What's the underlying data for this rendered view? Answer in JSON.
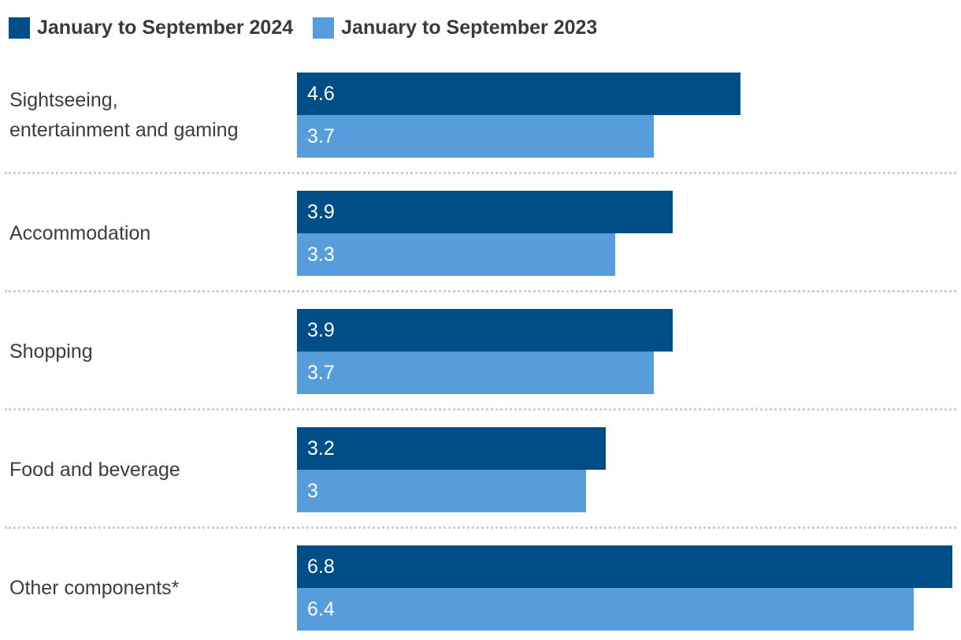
{
  "legend": {
    "items": [
      {
        "label": "January to September 2024",
        "color": "#004E87"
      },
      {
        "label": "January to September 2023",
        "color": "#579DDB"
      }
    ]
  },
  "chart_data": {
    "type": "bar",
    "orientation": "horizontal",
    "title": "",
    "xlabel": "",
    "ylabel": "",
    "categories": [
      "Sightseeing,\nentertainment and gaming",
      "Accommodation",
      "Shopping",
      "Food and beverage",
      "Other components*"
    ],
    "series": [
      {
        "name": "January to September 2024",
        "color": "#004E87",
        "values": [
          4.6,
          3.9,
          3.9,
          3.2,
          6.8
        ],
        "value_labels": [
          "4.6",
          "3.9",
          "3.9",
          "3.2",
          "6.8"
        ]
      },
      {
        "name": "January to September 2023",
        "color": "#579DDB",
        "values": [
          3.7,
          3.3,
          3.7,
          3.0,
          6.4
        ],
        "value_labels": [
          "3.7",
          "3.3",
          "3.7",
          "3",
          "6.4"
        ]
      }
    ],
    "xlim": [
      0,
      6.89
    ],
    "grid": false,
    "legend_position": "top",
    "value_label_position": "inside-start",
    "value_label_color": "#ffffff",
    "separator_color": "#cfcfcf",
    "label_color": "#3c3c3c"
  }
}
